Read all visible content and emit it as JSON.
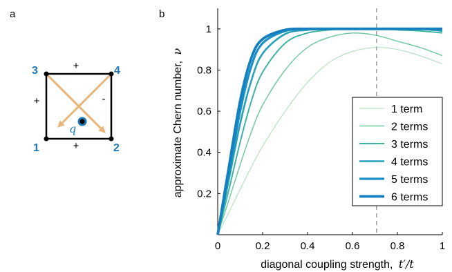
{
  "panel_a": {
    "label": "a",
    "nodes": [
      "1",
      "2",
      "3",
      "4"
    ],
    "signs": {
      "top": "+",
      "left": "+",
      "bottom": "+",
      "right": "-"
    },
    "charge": "q",
    "colors": {
      "node_label": "#1f77b4",
      "arrow": "#e9b57a",
      "square": "#000000",
      "charge_ring": "#1f77b4"
    }
  },
  "panel_b": {
    "label": "b",
    "chart_data": {
      "type": "line",
      "xlabel_text": "diagonal coupling strength,",
      "xlabel_math": "t′/t",
      "ylabel_text": "approximate Chern number,",
      "ylabel_math": "ν",
      "xlim": [
        0,
        1
      ],
      "ylim": [
        0,
        1.1
      ],
      "xticks": [
        "0",
        "0.2",
        "0.4",
        "0.6",
        "0.8",
        "1"
      ],
      "yticks": [
        "0.2",
        "0.4",
        "0.6",
        "0.8",
        "1"
      ],
      "vline_x": 0.7071,
      "legend_position": "lower-right",
      "series": [
        {
          "name": "1 term",
          "color": "#a8dcb6",
          "x": [
            0,
            0.05,
            0.1,
            0.15,
            0.2,
            0.3,
            0.4,
            0.5,
            0.6,
            0.7,
            0.8,
            0.9,
            1.0
          ],
          "y": [
            0,
            0.11,
            0.22,
            0.33,
            0.43,
            0.6,
            0.74,
            0.84,
            0.89,
            0.91,
            0.9,
            0.87,
            0.83
          ]
        },
        {
          "name": "2 terms",
          "color": "#72c9a0",
          "x": [
            0,
            0.05,
            0.1,
            0.15,
            0.2,
            0.3,
            0.4,
            0.5,
            0.6,
            0.7,
            0.8,
            0.9,
            1.0
          ],
          "y": [
            0,
            0.17,
            0.34,
            0.5,
            0.63,
            0.8,
            0.91,
            0.96,
            0.98,
            0.97,
            0.94,
            0.91,
            0.87
          ]
        },
        {
          "name": "3 terms",
          "color": "#3fb3a2",
          "x": [
            0,
            0.05,
            0.1,
            0.15,
            0.2,
            0.3,
            0.4,
            0.5,
            0.6,
            0.7,
            0.8,
            0.9,
            1.0
          ],
          "y": [
            0,
            0.22,
            0.45,
            0.65,
            0.79,
            0.93,
            0.98,
            0.995,
            1.0,
            1.0,
            0.995,
            0.99,
            0.98
          ]
        },
        {
          "name": "4 terms",
          "color": "#24a0b8",
          "x": [
            0,
            0.05,
            0.1,
            0.15,
            0.2,
            0.3,
            0.4,
            0.5,
            0.6,
            0.7,
            0.8,
            0.9,
            1.0
          ],
          "y": [
            0,
            0.27,
            0.54,
            0.75,
            0.88,
            0.975,
            0.995,
            1.0,
            1.0,
            1.0,
            1.0,
            1.0,
            0.99
          ]
        },
        {
          "name": "5 terms",
          "color": "#1a8fc3",
          "x": [
            0,
            0.05,
            0.1,
            0.15,
            0.2,
            0.3,
            0.4,
            0.5,
            0.6,
            0.7,
            0.8,
            0.9,
            1.0
          ],
          "y": [
            0,
            0.3,
            0.6,
            0.82,
            0.93,
            0.99,
            1.0,
            1.0,
            1.0,
            1.0,
            1.0,
            1.0,
            1.0
          ]
        },
        {
          "name": "6 terms",
          "color": "#1580c0",
          "x": [
            0,
            0.05,
            0.1,
            0.15,
            0.2,
            0.3,
            0.4,
            0.5,
            0.6,
            0.7,
            0.8,
            0.9,
            1.0
          ],
          "y": [
            0,
            0.33,
            0.65,
            0.86,
            0.95,
            0.995,
            1.0,
            1.0,
            1.0,
            1.0,
            1.0,
            1.0,
            1.0
          ]
        }
      ]
    }
  }
}
